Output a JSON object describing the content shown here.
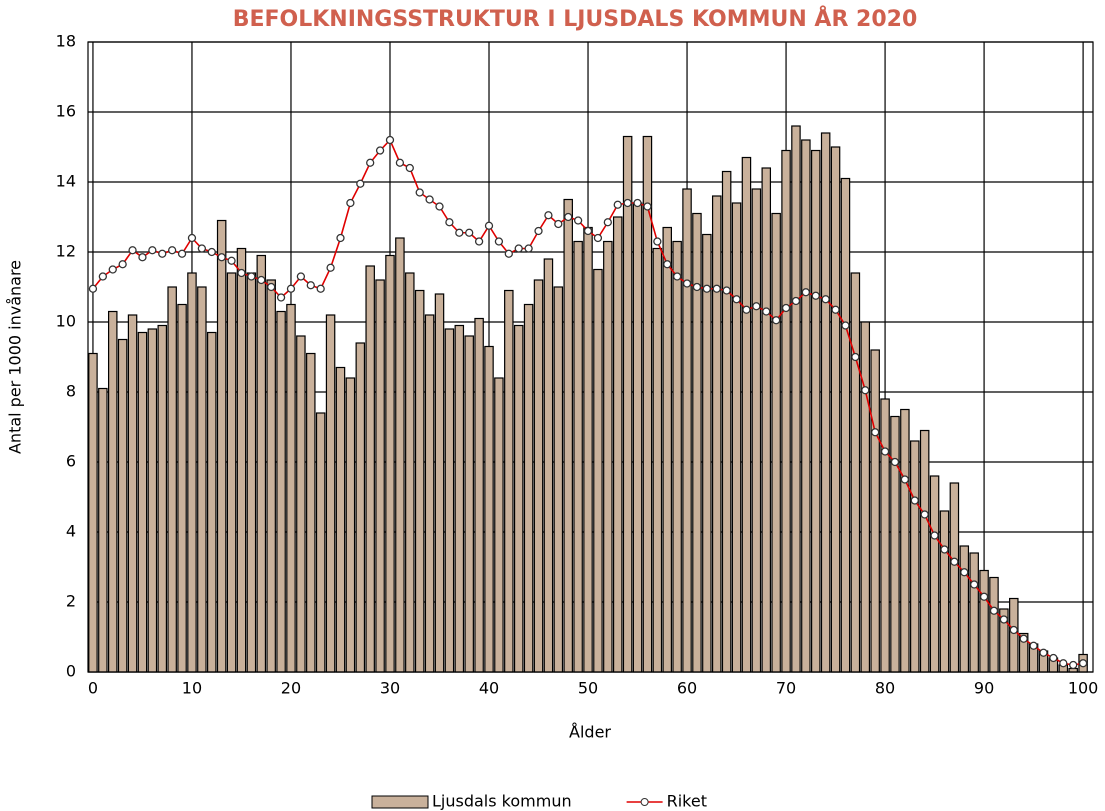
{
  "chart_data": {
    "type": "bar",
    "title": "BEFOLKNINGSSTRUKTUR I LJUSDALS KOMMUN ÅR 2020",
    "x_label": "Ålder",
    "y_label": "Antal per 1000 invånare",
    "x": [
      0,
      1,
      2,
      3,
      4,
      5,
      6,
      7,
      8,
      9,
      10,
      11,
      12,
      13,
      14,
      15,
      16,
      17,
      18,
      19,
      20,
      21,
      22,
      23,
      24,
      25,
      26,
      27,
      28,
      29,
      30,
      31,
      32,
      33,
      34,
      35,
      36,
      37,
      38,
      39,
      40,
      41,
      42,
      43,
      44,
      45,
      46,
      47,
      48,
      49,
      50,
      51,
      52,
      53,
      54,
      55,
      56,
      57,
      58,
      59,
      60,
      61,
      62,
      63,
      64,
      65,
      66,
      67,
      68,
      69,
      70,
      71,
      72,
      73,
      74,
      75,
      76,
      77,
      78,
      79,
      80,
      81,
      82,
      83,
      84,
      85,
      86,
      87,
      88,
      89,
      90,
      91,
      92,
      93,
      94,
      95,
      96,
      97,
      98,
      99,
      100
    ],
    "series": [
      {
        "name": "Ljusdals kommun",
        "type": "bar",
        "color": "#c9b19b",
        "values": [
          9.1,
          8.1,
          10.3,
          9.5,
          10.2,
          9.7,
          9.8,
          9.9,
          11.0,
          10.5,
          11.4,
          11.0,
          9.7,
          12.9,
          11.4,
          12.1,
          11.4,
          11.9,
          11.2,
          10.3,
          10.5,
          9.6,
          9.1,
          7.4,
          10.2,
          8.7,
          8.4,
          9.4,
          11.6,
          11.2,
          11.9,
          12.4,
          11.4,
          10.9,
          10.2,
          10.8,
          9.8,
          9.9,
          9.6,
          10.1,
          9.3,
          8.4,
          10.9,
          9.9,
          10.5,
          11.2,
          11.8,
          11.0,
          13.5,
          12.3,
          12.7,
          11.5,
          12.3,
          13.0,
          15.3,
          13.4,
          15.3,
          12.1,
          12.7,
          12.3,
          13.8,
          13.1,
          12.5,
          13.6,
          14.3,
          13.4,
          14.7,
          13.8,
          14.4,
          13.1,
          14.9,
          15.6,
          15.2,
          14.9,
          15.4,
          15.0,
          14.1,
          11.4,
          10.0,
          9.2,
          7.8,
          7.3,
          7.5,
          6.6,
          6.9,
          5.6,
          4.6,
          5.4,
          3.6,
          3.4,
          2.9,
          2.7,
          1.8,
          2.1,
          1.1,
          0.8,
          0.6,
          0.4,
          0.2,
          0.1,
          0.5
        ]
      },
      {
        "name": "Riket",
        "type": "line",
        "color": "#e00000",
        "values": [
          10.95,
          11.3,
          11.5,
          11.65,
          12.05,
          11.85,
          12.05,
          11.95,
          12.05,
          11.95,
          12.4,
          12.1,
          12.0,
          11.85,
          11.75,
          11.4,
          11.3,
          11.2,
          11.0,
          10.7,
          10.95,
          11.3,
          11.05,
          10.95,
          11.55,
          12.4,
          13.4,
          13.95,
          14.55,
          14.9,
          15.2,
          14.55,
          14.4,
          13.7,
          13.5,
          13.3,
          12.85,
          12.55,
          12.55,
          12.3,
          12.75,
          12.3,
          11.95,
          12.1,
          12.1,
          12.6,
          13.05,
          12.8,
          13.0,
          12.9,
          12.6,
          12.4,
          12.85,
          13.35,
          13.4,
          13.4,
          13.3,
          12.3,
          11.65,
          11.3,
          11.1,
          11.0,
          10.95,
          10.95,
          10.9,
          10.65,
          10.35,
          10.45,
          10.3,
          10.05,
          10.4,
          10.6,
          10.85,
          10.75,
          10.65,
          10.35,
          9.9,
          9.0,
          8.05,
          6.85,
          6.3,
          6.0,
          5.5,
          4.9,
          4.5,
          3.9,
          3.5,
          3.15,
          2.85,
          2.5,
          2.15,
          1.75,
          1.5,
          1.2,
          0.95,
          0.75,
          0.55,
          0.4,
          0.25,
          0.2,
          0.25
        ]
      }
    ],
    "xlim": [
      -0.5,
      101
    ],
    "xticks": [
      0,
      10,
      20,
      30,
      40,
      50,
      60,
      70,
      80,
      90,
      100
    ],
    "ylim": [
      0,
      18
    ],
    "yticks": [
      0,
      2,
      4,
      6,
      8,
      10,
      12,
      14,
      16,
      18
    ],
    "grid": true,
    "legend": "bottom"
  }
}
